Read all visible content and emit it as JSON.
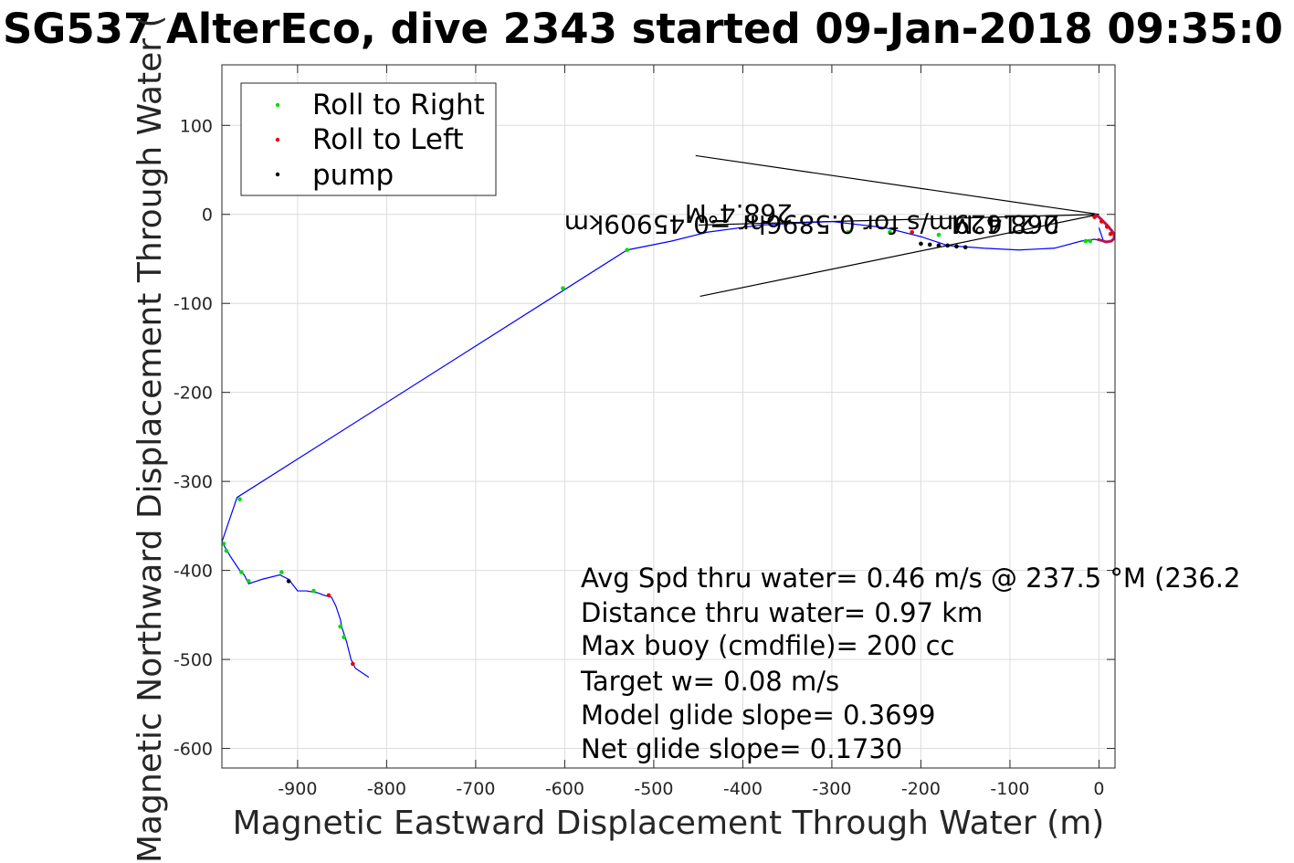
{
  "chart_data": {
    "type": "scatter",
    "title": "SG537 AlterEco, dive 2343 started 09-Jan-2018 09:35:0",
    "xlabel": "Magnetic Eastward Displacement Through Water (m)",
    "ylabel": "Magnetic Northward Displacement Through Water (",
    "xlim": [
      -985,
      18
    ],
    "ylim": [
      -622,
      168
    ],
    "xticks": [
      -900,
      -800,
      -700,
      -600,
      -500,
      -400,
      -300,
      -200,
      -100,
      0
    ],
    "yticks": [
      100,
      0,
      -100,
      -200,
      -300,
      -400,
      -500,
      -600
    ],
    "xtick_labels": [
      "-900",
      "-800",
      "-700",
      "-600",
      "-500",
      "-400",
      "-300",
      "-200",
      "-100",
      "0"
    ],
    "ytick_labels": [
      "100",
      "0",
      "-100",
      "-200",
      "-300",
      "-400",
      "-500",
      "-600"
    ],
    "grid": true,
    "legend_position": "top-left",
    "legend": [
      {
        "label": "Roll to Right",
        "color": "#00dd00"
      },
      {
        "label": "Roll to Left",
        "color": "#ee0000"
      },
      {
        "label": "pump",
        "color": "#000000"
      }
    ],
    "track": {
      "name": "",
      "color": "#0000ff",
      "x": [
        -820,
        -835,
        -840,
        -845,
        -850,
        -852,
        -857,
        -862,
        -870,
        -878,
        -890,
        -900,
        -910,
        -920,
        -940,
        -955,
        -960,
        -965,
        -975,
        -985,
        -968,
        -530,
        -480,
        -440,
        -380,
        -300,
        -240,
        -200,
        -170,
        -130,
        -90,
        -50,
        -20,
        -5,
        5,
        0
      ],
      "y": [
        -520,
        -510,
        -500,
        -480,
        -465,
        -455,
        -440,
        -430,
        -428,
        -425,
        -423,
        -423,
        -410,
        -405,
        -410,
        -415,
        -405,
        -400,
        -385,
        -368,
        -318,
        -40,
        -30,
        -20,
        -12,
        -8,
        -15,
        -25,
        -35,
        -38,
        -40,
        -38,
        -30,
        -28,
        -30,
        -15
      ]
    },
    "spiral": {
      "color": "#bb1155",
      "x": [
        -5,
        0,
        5,
        10,
        14,
        17,
        17,
        14,
        8,
        2,
        -2
      ],
      "y": [
        0,
        -3,
        -8,
        -13,
        -18,
        -22,
        -27,
        -30,
        -31,
        -29,
        -28
      ]
    },
    "roll_right": {
      "color": "#00dd00",
      "x": [
        -965,
        -983,
        -980,
        -963,
        -955,
        -918,
        -882,
        -852,
        -848,
        -602,
        -530,
        -282,
        -235,
        -180,
        -15,
        -10
      ],
      "y": [
        -320,
        -370,
        -378,
        -402,
        -412,
        -402,
        -423,
        -463,
        -475,
        -83,
        -40,
        -20,
        -20,
        -23,
        -30,
        -30
      ]
    },
    "roll_left": {
      "color": "#ee0000",
      "x": [
        -865,
        -838,
        -210,
        -5,
        3,
        9,
        13
      ],
      "y": [
        -428,
        -505,
        -20,
        -3,
        -8,
        -14,
        -22
      ]
    },
    "pump": {
      "color": "#000000",
      "x": [
        -910,
        -200,
        -190,
        -180,
        -170,
        -160,
        -150
      ],
      "y": [
        -412,
        -33,
        -34,
        -35,
        -35,
        -36,
        -37
      ]
    },
    "reference_lines": [
      {
        "x": [
          -453,
          0
        ],
        "y": [
          66,
          0
        ]
      },
      {
        "x": [
          -448,
          0
        ],
        "y": [
          -92,
          0
        ]
      },
      {
        "x": [
          -450,
          0
        ],
        "y": [
          -12,
          0
        ]
      }
    ],
    "annotations": {
      "mirrored_1": "268.4°M",
      "mirrored_2": "0.21629m/s for 0.5896hr =0.45909km",
      "mirrored_3": "268.4°M"
    },
    "stats": [
      "Avg Spd thru water=  0.46 m/s @ 237.5 °M (236.2",
      "Distance thru water=  0.97 km",
      "Max buoy (cmdfile)= 200 cc",
      "Target w= 0.08 m/s",
      "Model glide slope= 0.3699",
      "Net glide slope= 0.1730"
    ]
  }
}
